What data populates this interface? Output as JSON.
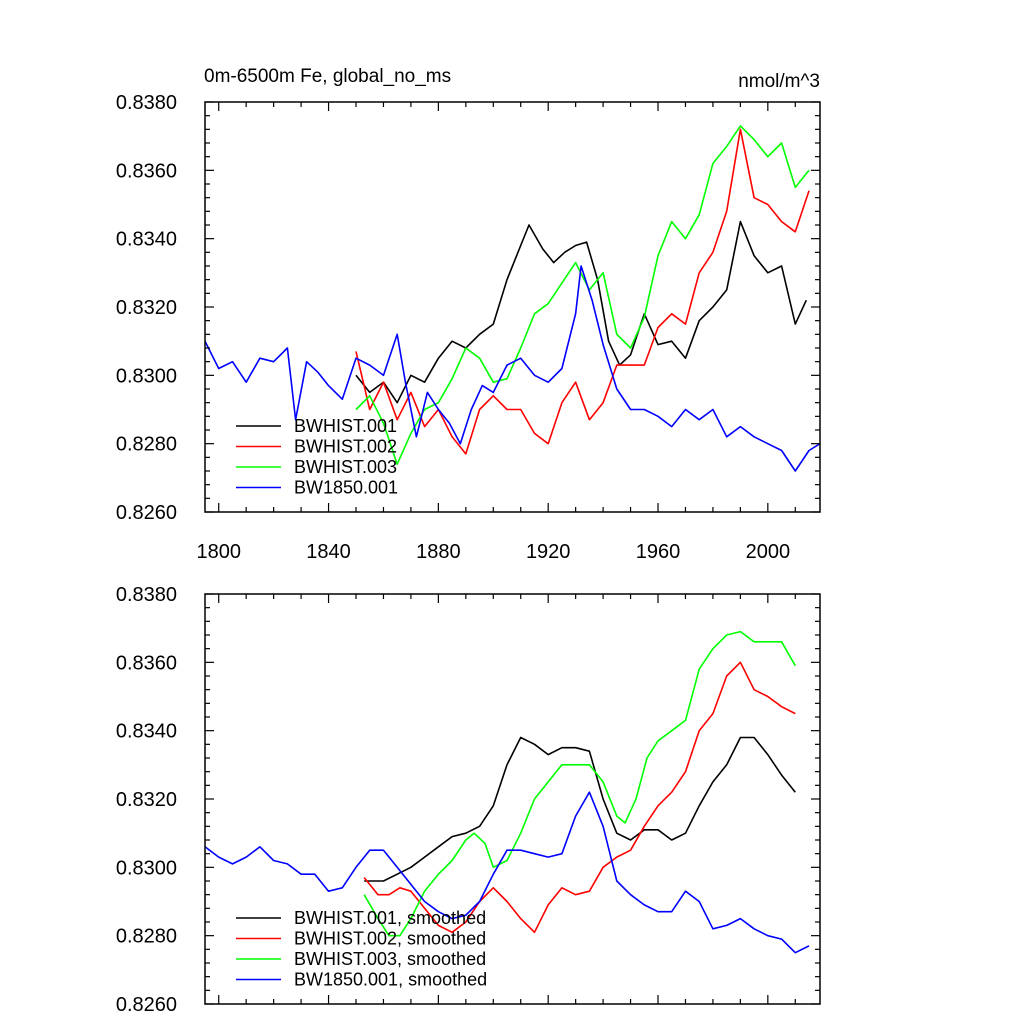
{
  "colors": {
    "BWHIST.001": "#000000",
    "BWHIST.002": "#ff0000",
    "BWHIST.003": "#00ff00",
    "BW1850.001": "#0000ff",
    "frame": "#000000",
    "background": "#ffffff"
  },
  "chart_data": [
    {
      "type": "line",
      "title": "0m-6500m Fe, global_no_ms",
      "units_label": "nmol/m^3",
      "xlabel": "",
      "ylabel": "",
      "xlim": [
        1795,
        2019
      ],
      "ylim": [
        0.826,
        0.838
      ],
      "x_ticks": [
        1800,
        1840,
        1880,
        1920,
        1960,
        2000
      ],
      "x_tick_labels": [
        "1800",
        "1840",
        "1880",
        "1920",
        "1960",
        "2000"
      ],
      "y_ticks": [
        0.826,
        0.828,
        0.83,
        0.832,
        0.834,
        0.836,
        0.838
      ],
      "y_tick_labels": [
        "0.8260",
        "0.8280",
        "0.8300",
        "0.8320",
        "0.8340",
        "0.8360",
        "0.8380"
      ],
      "grid": false,
      "legend_position": "bottom-left",
      "series": [
        {
          "name": "BWHIST.001",
          "color": "#000000",
          "x": [
            1850,
            1855,
            1860,
            1865,
            1870,
            1875,
            1880,
            1885,
            1890,
            1895,
            1900,
            1905,
            1910,
            1913,
            1918,
            1922,
            1926,
            1930,
            1934,
            1938,
            1942,
            1946,
            1950,
            1955,
            1960,
            1965,
            1970,
            1975,
            1980,
            1985,
            1990,
            1995,
            2000,
            2005,
            2010,
            2014
          ],
          "y": [
            0.83,
            0.8295,
            0.8298,
            0.8292,
            0.83,
            0.8298,
            0.8305,
            0.831,
            0.8308,
            0.8312,
            0.8315,
            0.8328,
            0.8338,
            0.8344,
            0.8337,
            0.8333,
            0.8336,
            0.8338,
            0.8339,
            0.8328,
            0.831,
            0.8303,
            0.8306,
            0.8318,
            0.8309,
            0.831,
            0.8305,
            0.8316,
            0.832,
            0.8325,
            0.8345,
            0.8335,
            0.833,
            0.8332,
            0.8315,
            0.8322
          ]
        },
        {
          "name": "BWHIST.002",
          "color": "#ff0000",
          "x": [
            1850,
            1855,
            1860,
            1865,
            1870,
            1875,
            1880,
            1885,
            1890,
            1895,
            1900,
            1905,
            1910,
            1915,
            1920,
            1925,
            1930,
            1935,
            1940,
            1945,
            1950,
            1955,
            1960,
            1965,
            1970,
            1975,
            1980,
            1985,
            1990,
            1995,
            2000,
            2005,
            2010,
            2015
          ],
          "y": [
            0.8307,
            0.829,
            0.8298,
            0.8287,
            0.8295,
            0.8285,
            0.829,
            0.8282,
            0.8277,
            0.829,
            0.8294,
            0.829,
            0.829,
            0.8283,
            0.828,
            0.8292,
            0.8298,
            0.8287,
            0.8292,
            0.8303,
            0.8303,
            0.8303,
            0.8314,
            0.8318,
            0.8315,
            0.833,
            0.8336,
            0.8348,
            0.8372,
            0.8352,
            0.835,
            0.8345,
            0.8342,
            0.8354
          ]
        },
        {
          "name": "BWHIST.003",
          "color": "#00ff00",
          "x": [
            1850,
            1855,
            1860,
            1865,
            1870,
            1875,
            1880,
            1885,
            1890,
            1895,
            1900,
            1905,
            1910,
            1915,
            1920,
            1925,
            1930,
            1935,
            1940,
            1945,
            1950,
            1955,
            1960,
            1965,
            1970,
            1975,
            1980,
            1985,
            1990,
            1995,
            2000,
            2005,
            2010,
            2015
          ],
          "y": [
            0.829,
            0.8294,
            0.8286,
            0.8274,
            0.8283,
            0.829,
            0.8292,
            0.8299,
            0.8308,
            0.8305,
            0.8298,
            0.8299,
            0.8308,
            0.8318,
            0.8321,
            0.8327,
            0.8333,
            0.8325,
            0.833,
            0.8312,
            0.8308,
            0.8317,
            0.8335,
            0.8345,
            0.834,
            0.8347,
            0.8362,
            0.8367,
            0.8373,
            0.8369,
            0.8364,
            0.8368,
            0.8355,
            0.836
          ]
        },
        {
          "name": "BW1850.001",
          "color": "#0000ff",
          "x": [
            1795,
            1800,
            1805,
            1810,
            1815,
            1820,
            1825,
            1828,
            1832,
            1836,
            1840,
            1845,
            1850,
            1855,
            1860,
            1865,
            1868,
            1872,
            1876,
            1880,
            1884,
            1888,
            1892,
            1896,
            1900,
            1905,
            1910,
            1915,
            1920,
            1925,
            1930,
            1932,
            1936,
            1940,
            1945,
            1950,
            1955,
            1960,
            1965,
            1970,
            1975,
            1980,
            1985,
            1990,
            1995,
            2000,
            2005,
            2010,
            2015,
            2019
          ],
          "y": [
            0.831,
            0.8302,
            0.8304,
            0.8298,
            0.8305,
            0.8304,
            0.8308,
            0.8287,
            0.8304,
            0.8301,
            0.8297,
            0.8293,
            0.8305,
            0.8303,
            0.83,
            0.8312,
            0.8298,
            0.8282,
            0.8295,
            0.829,
            0.8286,
            0.828,
            0.829,
            0.8297,
            0.8295,
            0.8303,
            0.8305,
            0.83,
            0.8298,
            0.8302,
            0.8318,
            0.8332,
            0.8322,
            0.8309,
            0.8296,
            0.829,
            0.829,
            0.8288,
            0.8285,
            0.829,
            0.8287,
            0.829,
            0.8282,
            0.8285,
            0.8282,
            0.828,
            0.8278,
            0.8272,
            0.8278,
            0.828
          ]
        }
      ]
    },
    {
      "type": "line",
      "title": "",
      "xlabel": "",
      "ylabel": "",
      "xlim": [
        1795,
        2019
      ],
      "ylim": [
        0.826,
        0.838
      ],
      "x_ticks": [
        1800,
        1840,
        1880,
        1920,
        1960,
        2000
      ],
      "y_ticks": [
        0.826,
        0.828,
        0.83,
        0.832,
        0.834,
        0.836,
        0.838
      ],
      "y_tick_labels": [
        "0.8260",
        "0.8280",
        "0.8300",
        "0.8320",
        "0.8340",
        "0.8360",
        "0.8380"
      ],
      "grid": false,
      "legend_position": "bottom-left",
      "series": [
        {
          "name": "BWHIST.001, smoothed",
          "color": "#000000",
          "x": [
            1853,
            1860,
            1865,
            1870,
            1875,
            1880,
            1885,
            1890,
            1895,
            1900,
            1905,
            1910,
            1915,
            1920,
            1925,
            1930,
            1935,
            1940,
            1945,
            1950,
            1955,
            1960,
            1965,
            1970,
            1975,
            1980,
            1985,
            1990,
            1995,
            2000,
            2005,
            2010
          ],
          "y": [
            0.8296,
            0.8296,
            0.8298,
            0.83,
            0.8303,
            0.8306,
            0.8309,
            0.831,
            0.8312,
            0.8318,
            0.833,
            0.8338,
            0.8336,
            0.8333,
            0.8335,
            0.8335,
            0.8334,
            0.832,
            0.831,
            0.8308,
            0.8311,
            0.8311,
            0.8308,
            0.831,
            0.8318,
            0.8325,
            0.833,
            0.8338,
            0.8338,
            0.8333,
            0.8327,
            0.8322
          ]
        },
        {
          "name": "BWHIST.002, smoothed",
          "color": "#ff0000",
          "x": [
            1853,
            1858,
            1862,
            1866,
            1870,
            1875,
            1880,
            1885,
            1890,
            1895,
            1900,
            1905,
            1910,
            1915,
            1920,
            1925,
            1930,
            1935,
            1940,
            1945,
            1950,
            1955,
            1960,
            1965,
            1970,
            1975,
            1980,
            1985,
            1990,
            1995,
            2000,
            2005,
            2010
          ],
          "y": [
            0.8297,
            0.8292,
            0.8292,
            0.8294,
            0.8293,
            0.8288,
            0.8283,
            0.8281,
            0.8284,
            0.829,
            0.8294,
            0.829,
            0.8285,
            0.8281,
            0.8289,
            0.8294,
            0.8292,
            0.8293,
            0.83,
            0.8303,
            0.8305,
            0.8312,
            0.8318,
            0.8322,
            0.8328,
            0.834,
            0.8345,
            0.8356,
            0.836,
            0.8352,
            0.835,
            0.8347,
            0.8345
          ]
        },
        {
          "name": "BWHIST.003, smoothed",
          "color": "#00ff00",
          "x": [
            1853,
            1858,
            1862,
            1866,
            1870,
            1875,
            1880,
            1885,
            1890,
            1893,
            1897,
            1900,
            1905,
            1910,
            1915,
            1920,
            1925,
            1930,
            1935,
            1940,
            1945,
            1948,
            1952,
            1956,
            1960,
            1965,
            1970,
            1975,
            1980,
            1985,
            1990,
            1995,
            2000,
            2005,
            2010
          ],
          "y": [
            0.8292,
            0.8285,
            0.828,
            0.828,
            0.8285,
            0.8293,
            0.8298,
            0.8302,
            0.8308,
            0.831,
            0.8307,
            0.83,
            0.8302,
            0.831,
            0.832,
            0.8325,
            0.833,
            0.833,
            0.833,
            0.8325,
            0.8315,
            0.8313,
            0.832,
            0.8332,
            0.8337,
            0.834,
            0.8343,
            0.8358,
            0.8364,
            0.8368,
            0.8369,
            0.8366,
            0.8366,
            0.8366,
            0.8359
          ]
        },
        {
          "name": "BW1850.001, smoothed",
          "color": "#0000ff",
          "x": [
            1795,
            1800,
            1805,
            1810,
            1815,
            1820,
            1825,
            1830,
            1835,
            1840,
            1845,
            1850,
            1855,
            1860,
            1865,
            1870,
            1875,
            1880,
            1885,
            1890,
            1895,
            1900,
            1905,
            1910,
            1915,
            1920,
            1925,
            1930,
            1935,
            1940,
            1945,
            1950,
            1955,
            1960,
            1965,
            1970,
            1975,
            1980,
            1985,
            1990,
            1995,
            2000,
            2005,
            2010,
            2015
          ],
          "y": [
            0.8306,
            0.8303,
            0.8301,
            0.8303,
            0.8306,
            0.8302,
            0.8301,
            0.8298,
            0.8298,
            0.8293,
            0.8294,
            0.83,
            0.8305,
            0.8305,
            0.83,
            0.8295,
            0.829,
            0.8287,
            0.8285,
            0.8286,
            0.829,
            0.8298,
            0.8305,
            0.8305,
            0.8304,
            0.8303,
            0.8304,
            0.8315,
            0.8322,
            0.8312,
            0.8296,
            0.8292,
            0.8289,
            0.8287,
            0.8287,
            0.8293,
            0.829,
            0.8282,
            0.8283,
            0.8285,
            0.8282,
            0.828,
            0.8279,
            0.8275,
            0.8277
          ]
        }
      ]
    }
  ]
}
